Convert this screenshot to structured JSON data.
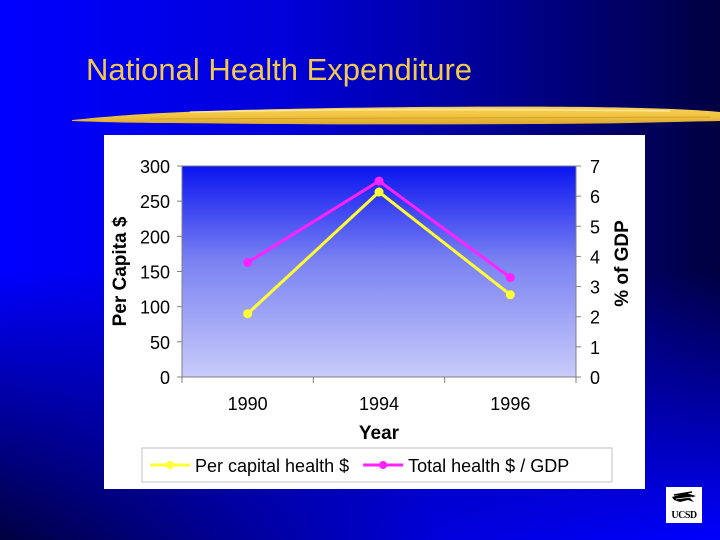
{
  "slide": {
    "title": "National Health Expenditure",
    "title_color": "#F2C94C",
    "logo_text": "UCSD",
    "background_colors": [
      "#0000FF",
      "#000040"
    ]
  },
  "chart_data": {
    "type": "line",
    "title": "",
    "xlabel": "Year",
    "ylabel": "Per Capita $",
    "y2label": "% of GDP",
    "categories": [
      "1990",
      "1994",
      "1996"
    ],
    "ylim": [
      0,
      300
    ],
    "y_ticks": [
      "0",
      "50",
      "100",
      "150",
      "200",
      "250",
      "300"
    ],
    "y2lim": [
      0,
      7
    ],
    "y2_ticks": [
      "0",
      "1",
      "2",
      "3",
      "4",
      "5",
      "6",
      "7"
    ],
    "grid": false,
    "legend_position": "bottom",
    "series": [
      {
        "name": "Per capital health $",
        "axis": "left",
        "color": "#FFFF33",
        "values": [
          90,
          263,
          117
        ]
      },
      {
        "name": "Total health $ / GDP",
        "axis": "right",
        "color": "#FF22FF",
        "values": [
          3.8,
          6.5,
          3.3
        ]
      }
    ]
  }
}
